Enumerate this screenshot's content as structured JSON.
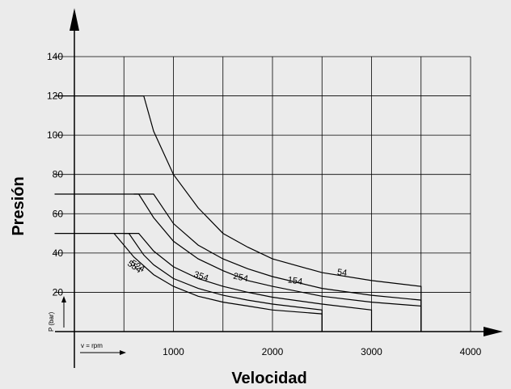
{
  "chart_data": {
    "type": "line",
    "xlabel": "Velocidad",
    "ylabel": "Presión",
    "x_ticks": [
      1000,
      2000,
      3000,
      4000
    ],
    "y_ticks": [
      20,
      40,
      60,
      80,
      100,
      120,
      140
    ],
    "xlim": [
      0,
      4000
    ],
    "ylim": [
      0,
      140
    ],
    "grid": true,
    "legend_p": "P (bar)",
    "legend_v": "v = rpm",
    "series": [
      {
        "name": "54",
        "points": [
          [
            0,
            120
          ],
          [
            700,
            120
          ],
          [
            800,
            102
          ],
          [
            1000,
            80
          ],
          [
            1250,
            63
          ],
          [
            1500,
            50
          ],
          [
            1750,
            43
          ],
          [
            2000,
            37
          ],
          [
            2500,
            30
          ],
          [
            3000,
            26
          ],
          [
            3500,
            23
          ],
          [
            3500,
            0
          ]
        ]
      },
      {
        "name": "154",
        "points": [
          [
            600,
            70
          ],
          [
            800,
            70
          ],
          [
            1000,
            55
          ],
          [
            1250,
            44
          ],
          [
            1500,
            37
          ],
          [
            1750,
            32
          ],
          [
            2000,
            28
          ],
          [
            2500,
            22
          ],
          [
            3000,
            18.5
          ],
          [
            3500,
            16
          ],
          [
            3500,
            0
          ]
        ]
      },
      {
        "name": "254",
        "points": [
          [
            0,
            70
          ],
          [
            650,
            70
          ],
          [
            800,
            58
          ],
          [
            1000,
            46
          ],
          [
            1250,
            37
          ],
          [
            1500,
            31
          ],
          [
            1750,
            26
          ],
          [
            2000,
            23
          ],
          [
            2500,
            18
          ],
          [
            3000,
            15
          ],
          [
            3500,
            13
          ],
          [
            3500,
            0
          ]
        ]
      },
      {
        "name": "354",
        "points": [
          [
            500,
            50
          ],
          [
            650,
            50
          ],
          [
            800,
            41
          ],
          [
            1000,
            33
          ],
          [
            1250,
            27
          ],
          [
            1500,
            23
          ],
          [
            1750,
            20
          ],
          [
            2000,
            17.5
          ],
          [
            2500,
            14
          ],
          [
            3000,
            11
          ],
          [
            3000,
            0
          ]
        ]
      },
      {
        "name": "524",
        "points": [
          [
            0,
            50
          ],
          [
            550,
            50
          ],
          [
            700,
            39
          ],
          [
            800,
            34
          ],
          [
            1000,
            27
          ],
          [
            1250,
            22
          ],
          [
            1500,
            18.5
          ],
          [
            1750,
            16
          ],
          [
            2000,
            14
          ],
          [
            2500,
            11
          ],
          [
            2500,
            0
          ]
        ]
      },
      {
        "name": "554",
        "points": [
          [
            400,
            50
          ],
          [
            500,
            44
          ],
          [
            600,
            38
          ],
          [
            800,
            29
          ],
          [
            1000,
            23
          ],
          [
            1250,
            18
          ],
          [
            1500,
            15
          ],
          [
            1750,
            13
          ],
          [
            2000,
            11
          ],
          [
            2500,
            9
          ],
          [
            2500,
            0
          ]
        ]
      }
    ],
    "label_positions": {
      "54": [
        1650,
        29
      ],
      "154": [
        1150,
        25
      ],
      "254": [
        600,
        27
      ],
      "354": [
        200,
        28
      ],
      "524": [
        -440,
        34
      ],
      "554": [
        -470,
        34
      ]
    }
  }
}
